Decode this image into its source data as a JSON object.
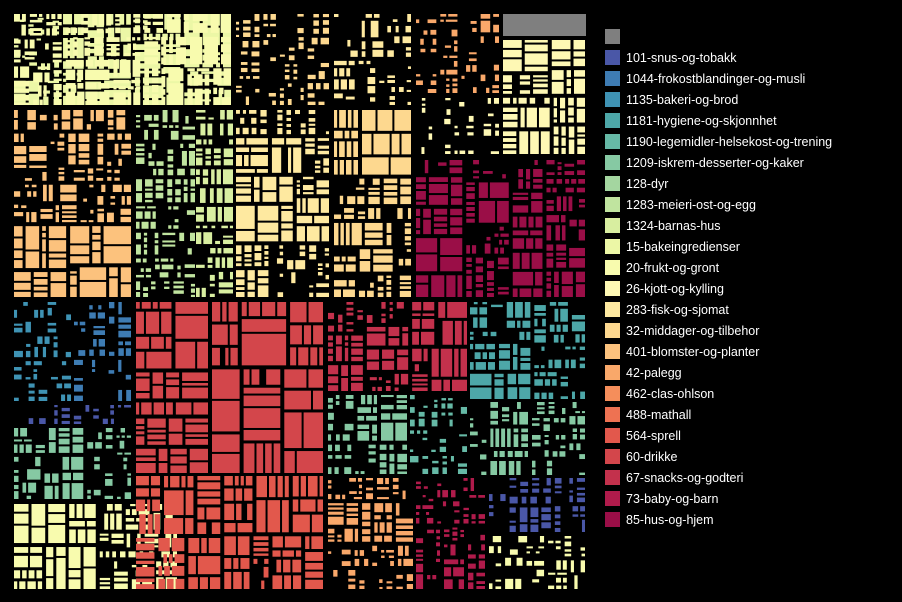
{
  "chart_data": {
    "type": "treemap",
    "title": "",
    "legend_position": "right",
    "categories": [
      {
        "name": "",
        "color": "#7f7f7f"
      },
      {
        "name": "101-snus-og-tobakk",
        "color": "#4a57a7"
      },
      {
        "name": "1044-frokostblandinger-og-musli",
        "color": "#3e7cb3"
      },
      {
        "name": "1135-bakeri-og-brod",
        "color": "#3f93b4"
      },
      {
        "name": "1181-hygiene-og-skjonnhet",
        "color": "#4da7a8"
      },
      {
        "name": "1190-legemidler-helsekost-og-trening",
        "color": "#66b9a6"
      },
      {
        "name": "1209-iskrem-desserter-og-kaker",
        "color": "#86c9a3"
      },
      {
        "name": "128-dyr",
        "color": "#a4d6a0"
      },
      {
        "name": "1283-meieri-ost-og-egg",
        "color": "#c0e49f"
      },
      {
        "name": "1324-barnas-hus",
        "color": "#d8eea0"
      },
      {
        "name": "15-bakeingredienser",
        "color": "#ecf7a6"
      },
      {
        "name": "20-frukt-og-gront",
        "color": "#f8fbae"
      },
      {
        "name": "26-kjott-og-kylling",
        "color": "#fef8b4"
      },
      {
        "name": "283-fisk-og-sjomat",
        "color": "#fee9a0"
      },
      {
        "name": "32-middager-og-tilbehor",
        "color": "#fdd88f"
      },
      {
        "name": "401-blomster-og-planter",
        "color": "#fcc27d"
      },
      {
        "name": "42-palegg",
        "color": "#f9a86a"
      },
      {
        "name": "462-clas-ohlson",
        "color": "#f58e5b"
      },
      {
        "name": "488-mathall",
        "color": "#ee7252"
      },
      {
        "name": "564-sprell",
        "color": "#e2584c"
      },
      {
        "name": "60-drikke",
        "color": "#d3464b"
      },
      {
        "name": "67-snacks-og-godteri",
        "color": "#c3314c"
      },
      {
        "name": "73-baby-og-barn",
        "color": "#b01b4b"
      },
      {
        "name": "85-hus-og-hjem",
        "color": "#9a0e47"
      }
    ]
  }
}
